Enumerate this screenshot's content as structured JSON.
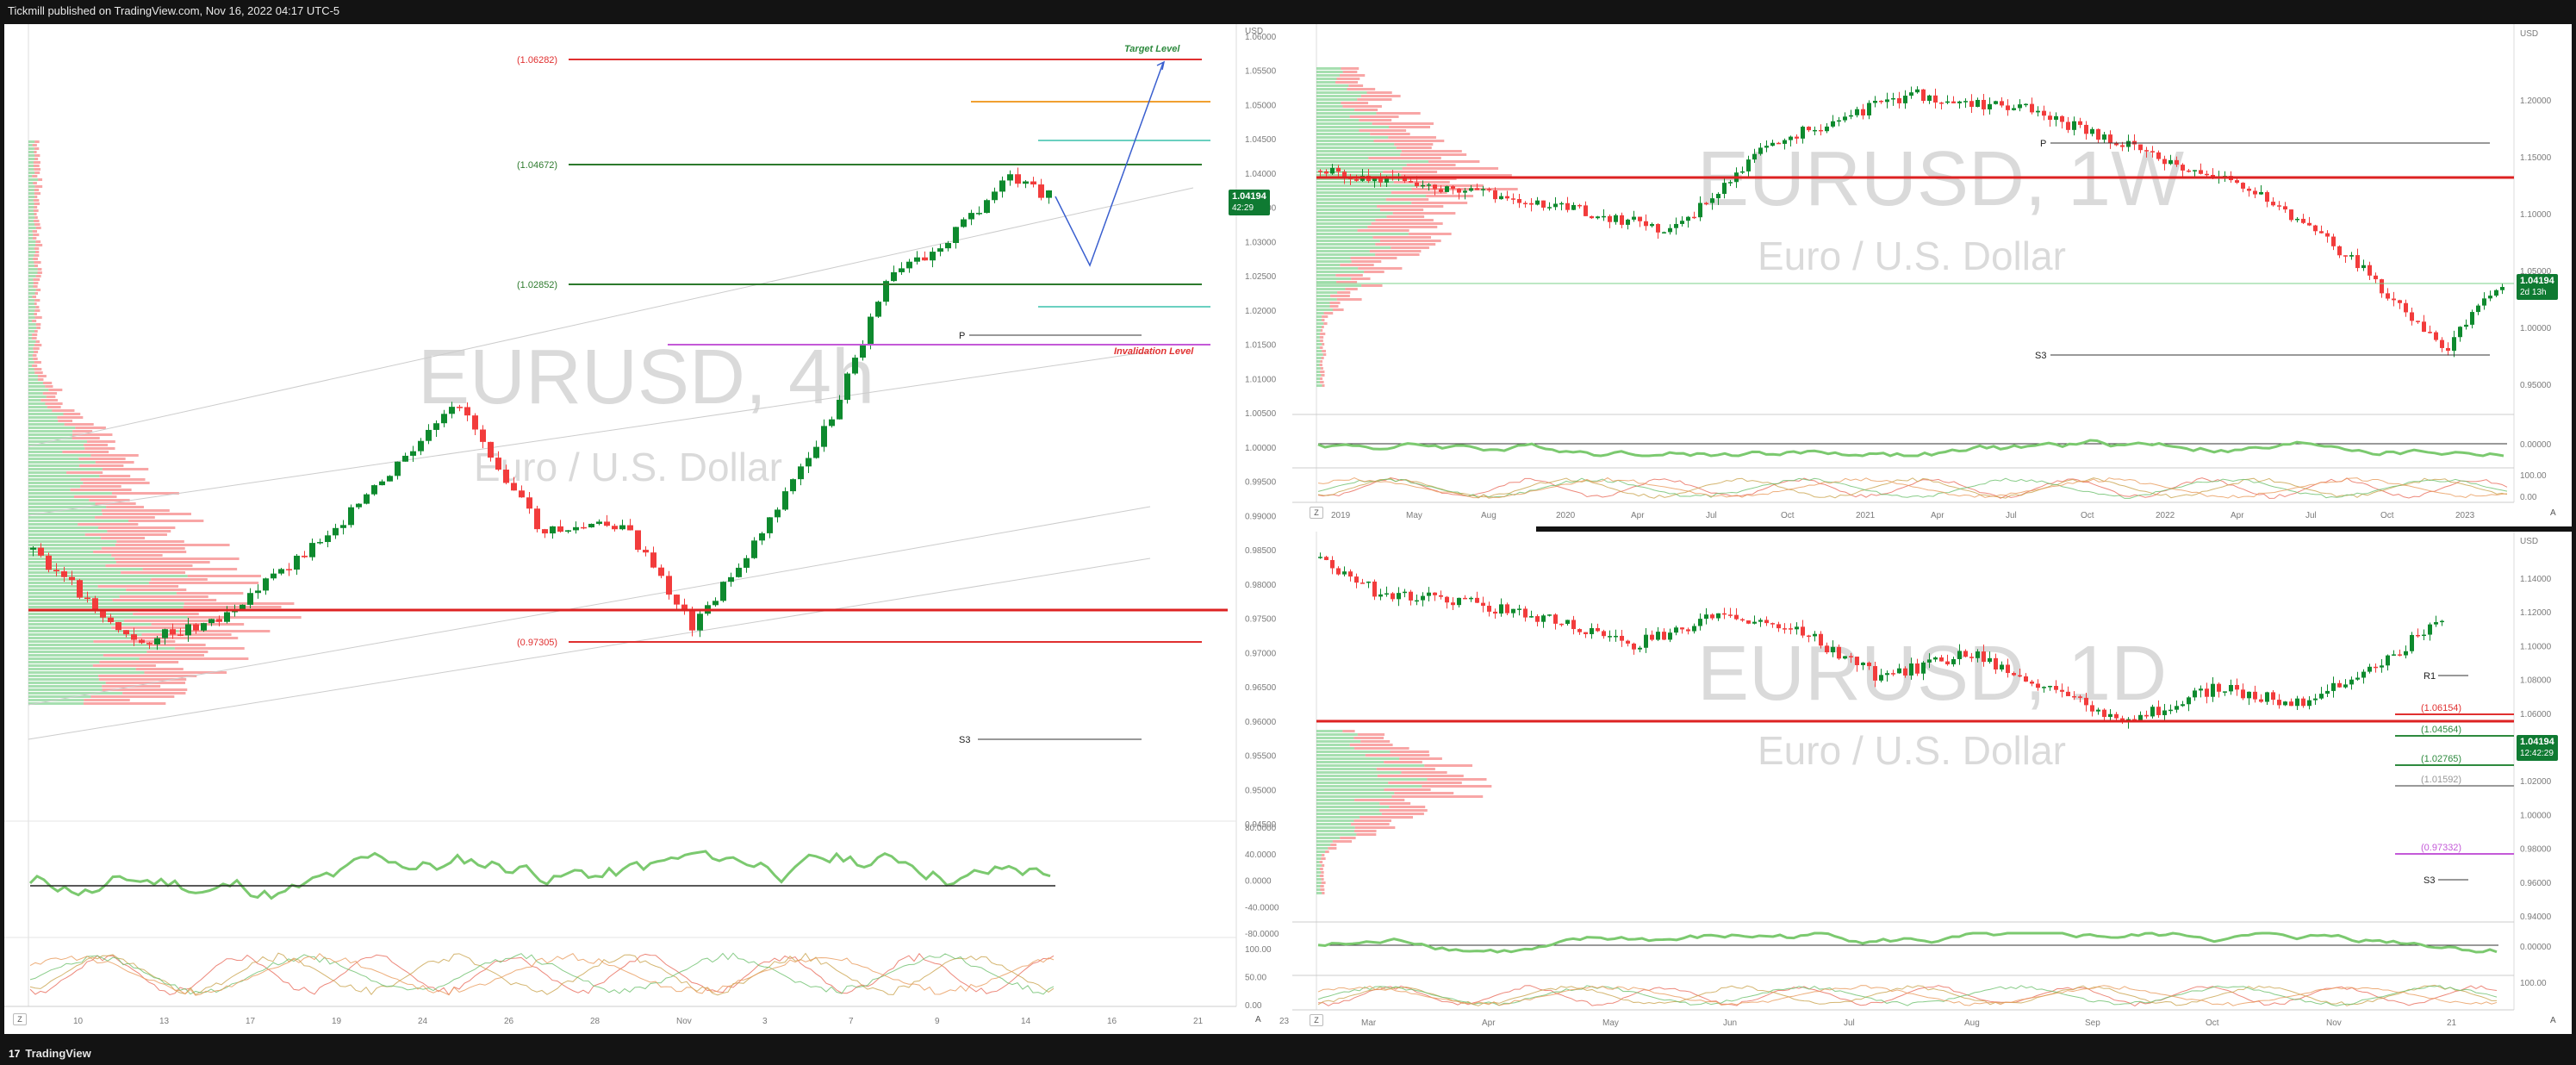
{
  "header": {
    "publisher": "Tickmill published on TradingView.com, Nov 16, 2022 04:17 UTC-5"
  },
  "footer": {
    "brand": "TradingView"
  },
  "colors": {
    "up": "#0e8a2e",
    "down": "#f23c3c",
    "tag": "#0f7a32",
    "target": "#2d8a3e",
    "invalidation": "#e03030"
  },
  "left_pane": {
    "symbol_watermark": "EURUSD, 4h",
    "name_watermark": "Euro / U.S. Dollar",
    "currency": "USD",
    "price_tag": "1.04194",
    "countdown": "42:29",
    "annotations": {
      "target": "Target Level",
      "invalidation": "Invalidation Level",
      "pivot": "P",
      "s3": "S3"
    },
    "levels": [
      "(1.06282)",
      "(1.04672)",
      "(1.02852)",
      "(0.97305)"
    ],
    "price_axis": [
      "1.06000",
      "1.05500",
      "1.05000",
      "1.04500",
      "1.04000",
      "1.03500",
      "1.03000",
      "1.02500",
      "1.02000",
      "1.01500",
      "1.01000",
      "1.00500",
      "1.00000",
      "0.99500",
      "0.99000",
      "0.98500",
      "0.98000",
      "0.97500",
      "0.97000",
      "0.96500",
      "0.96000",
      "0.95500",
      "0.95000",
      "0.94500"
    ],
    "osc_axis": [
      "80.0000",
      "40.0000",
      "0.0000",
      "-40.0000",
      "-80.0000"
    ],
    "stoch_axis": [
      "100.00",
      "50.00",
      "0.00"
    ],
    "time_axis": [
      "10",
      "13",
      "17",
      "19",
      "24",
      "26",
      "28",
      "Nov",
      "3",
      "7",
      "9",
      "14",
      "16",
      "21",
      "23"
    ],
    "z_button": "Z",
    "a_button": "A"
  },
  "top_right_pane": {
    "symbol_watermark": "EURUSD, 1W",
    "name_watermark": "Euro / U.S. Dollar",
    "currency": "USD",
    "price_tag": "1.04194",
    "countdown": "2d 13h",
    "annotations": {
      "pivot": "P",
      "s3": "S3"
    },
    "price_axis": [
      "1.20000",
      "1.15000",
      "1.10000",
      "1.05000",
      "1.00000",
      "0.95000"
    ],
    "osc_axis": [
      "0.00000"
    ],
    "stoch_axis": [
      "100.00",
      "0.00"
    ],
    "time_axis": [
      "2019",
      "May",
      "Aug",
      "2020",
      "Apr",
      "Jul",
      "Oct",
      "2021",
      "Apr",
      "Jul",
      "Oct",
      "2022",
      "Apr",
      "Jul",
      "Oct",
      "2023"
    ],
    "z_button": "Z",
    "a_button": "A"
  },
  "bottom_right_pane": {
    "symbol_watermark": "EURUSD, 1D",
    "name_watermark": "Euro / U.S. Dollar",
    "currency": "USD",
    "price_tag": "1.04194",
    "countdown": "12:42:29",
    "annotations": {
      "r1": "R1",
      "s3": "S3"
    },
    "levels": [
      "(1.06154)",
      "(1.04564)",
      "(1.02765)",
      "(1.01592)",
      "(0.97332)"
    ],
    "price_axis": [
      "1.14000",
      "1.12000",
      "1.10000",
      "1.08000",
      "1.06000",
      "1.04000",
      "1.02000",
      "1.00000",
      "0.98000",
      "0.96000",
      "0.94000"
    ],
    "osc_axis": [
      "0.00000"
    ],
    "stoch_axis": [
      "100.00"
    ],
    "time_axis": [
      "Mar",
      "Apr",
      "May",
      "Jun",
      "Jul",
      "Aug",
      "Sep",
      "Oct",
      "Nov",
      "21"
    ],
    "z_button": "Z",
    "a_button": "A"
  }
}
